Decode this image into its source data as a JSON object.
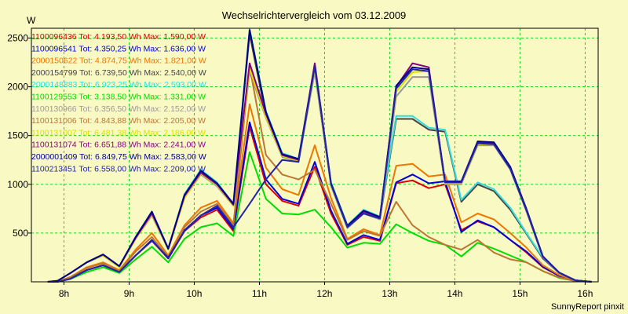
{
  "chart_data": {
    "type": "line",
    "title": "Wechselrichtervergleich vom 03.12.2009",
    "ylabel": "W",
    "xlabel": "",
    "footer": "SunnyReport pinxit",
    "ylim": [
      0,
      2600
    ],
    "xlim": [
      7.5,
      16.2
    ],
    "x_ticks": [
      8,
      9,
      10,
      11,
      12,
      13,
      14,
      15,
      16
    ],
    "x_tick_labels": [
      "8h",
      "9h",
      "10h",
      "11h",
      "12h",
      "13h",
      "14h",
      "15h",
      "16h"
    ],
    "y_ticks": [
      500,
      1000,
      1500,
      2000,
      2500
    ],
    "y_tick_labels": [
      "500",
      "1000",
      "1500",
      "2000",
      "2500"
    ],
    "grid": true,
    "legend_position": "top-left",
    "background_color": "#f9f9c4",
    "grid_color": "#22cc22",
    "x": [
      7.75,
      7.9,
      8.1,
      8.35,
      8.6,
      8.85,
      9.1,
      9.35,
      9.6,
      9.85,
      10.1,
      10.35,
      10.6,
      10.85,
      11.1,
      11.35,
      11.6,
      11.85,
      12.1,
      12.35,
      12.6,
      12.85,
      13.1,
      13.35,
      13.6,
      13.85,
      14.1,
      14.35,
      14.6,
      14.85,
      15.1,
      15.35,
      15.6,
      15.85,
      16.1
    ],
    "series": [
      {
        "name": "1100096436 Tot: 4.193,50 Wh Max: 1.590,00 W",
        "color": "#dd0000",
        "values": [
          0,
          0,
          40,
          120,
          170,
          100,
          270,
          420,
          240,
          520,
          660,
          740,
          520,
          1590,
          1000,
          830,
          780,
          1180,
          700,
          380,
          460,
          420,
          1010,
          1040,
          960,
          1000,
          530,
          620,
          560,
          430,
          300,
          150,
          60,
          10,
          0
        ]
      },
      {
        "name": "1100096541 Tot: 4.350,25 Wh Max: 1.636,00 W",
        "color": "#0000dd",
        "values": [
          0,
          0,
          40,
          120,
          170,
          100,
          270,
          430,
          240,
          530,
          680,
          760,
          540,
          1636,
          1050,
          850,
          800,
          1230,
          730,
          390,
          480,
          430,
          1020,
          1100,
          1010,
          1030,
          510,
          630,
          560,
          430,
          310,
          155,
          62,
          10,
          0
        ]
      },
      {
        "name": "2000150622 Tot: 4.874,75 Wh Max: 1.821,00 W",
        "color": "#ee7700",
        "values": [
          0,
          0,
          50,
          150,
          200,
          120,
          330,
          500,
          270,
          580,
          760,
          830,
          600,
          1821,
          1170,
          950,
          890,
          1400,
          860,
          440,
          540,
          480,
          1190,
          1210,
          1080,
          1100,
          610,
          700,
          640,
          500,
          350,
          170,
          70,
          12,
          0
        ]
      },
      {
        "name": "2000154799 Tot: 6.739,50 Wh Max: 2.540,00 W",
        "color": "#444444",
        "values": [
          0,
          10,
          90,
          200,
          270,
          160,
          450,
          700,
          340,
          880,
          1130,
          1000,
          790,
          2540,
          1700,
          1300,
          1250,
          2200,
          1000,
          560,
          720,
          650,
          1670,
          1670,
          1560,
          1540,
          820,
          1000,
          930,
          740,
          490,
          240,
          90,
          15,
          0
        ]
      },
      {
        "name": "2000148883 Tot: 6.923,25 Wh Max: 2.593,00 W",
        "color": "#33dddd",
        "values": [
          0,
          10,
          90,
          200,
          280,
          160,
          460,
          720,
          340,
          900,
          1150,
          1020,
          800,
          2593,
          1750,
          1320,
          1260,
          2230,
          1020,
          580,
          740,
          670,
          1700,
          1700,
          1580,
          1560,
          840,
          1020,
          950,
          760,
          500,
          250,
          95,
          15,
          0
        ]
      },
      {
        "name": "1100129553 Tot: 3.138,50 Wh Max: 1.331,00 W",
        "color": "#00dd00",
        "values": [
          0,
          0,
          30,
          100,
          150,
          90,
          230,
          360,
          200,
          440,
          560,
          600,
          470,
          1331,
          850,
          700,
          690,
          740,
          560,
          350,
          400,
          390,
          590,
          500,
          420,
          380,
          260,
          400,
          340,
          270,
          200,
          110,
          40,
          8,
          0
        ]
      },
      {
        "name": "1100130966 Tot: 6.356,50 Wh Max: 2.152,00 W",
        "color": "#999999",
        "values": [
          0,
          10,
          90,
          200,
          270,
          150,
          440,
          680,
          330,
          860,
          1100,
          980,
          780,
          2152,
          1680,
          1280,
          1230,
          2152,
          980,
          550,
          700,
          640,
          1900,
          2100,
          2100,
          1000,
          1000,
          1400,
          1400,
          1150,
          720,
          250,
          90,
          15,
          0
        ]
      },
      {
        "name": "1100131006 Tot: 4.843,88 Wh Max: 2.205,00 W",
        "color": "#bb7733",
        "values": [
          0,
          0,
          50,
          140,
          190,
          110,
          310,
          460,
          250,
          560,
          720,
          800,
          580,
          2205,
          1300,
          1100,
          1050,
          1150,
          800,
          430,
          520,
          470,
          820,
          580,
          460,
          380,
          330,
          430,
          300,
          230,
          200,
          110,
          45,
          8,
          0
        ]
      },
      {
        "name": "1100131007 Tot: 6.481,38 Wh Max: 2.186,00 W",
        "color": "#dddd00",
        "values": [
          0,
          10,
          90,
          200,
          270,
          150,
          440,
          690,
          330,
          860,
          1110,
          990,
          780,
          2186,
          1690,
          1290,
          1240,
          2186,
          990,
          560,
          710,
          650,
          1950,
          2150,
          2160,
          1010,
          1010,
          1410,
          1410,
          1160,
          730,
          255,
          92,
          15,
          0
        ]
      },
      {
        "name": "1100131074 Tot: 6.651,88 Wh Max: 2.241,00 W",
        "color": "#880088",
        "values": [
          0,
          10,
          90,
          200,
          280,
          160,
          450,
          700,
          340,
          880,
          1120,
          1000,
          790,
          2241,
          1720,
          1300,
          1250,
          2241,
          1000,
          570,
          720,
          660,
          2000,
          2241,
          2200,
          1020,
          1020,
          1430,
          1420,
          1170,
          740,
          260,
          95,
          15,
          0
        ]
      },
      {
        "name": "2000001409 Tot: 6.849,75 Wh Max: 2.583,00 W",
        "color": "#000088",
        "values": [
          0,
          10,
          90,
          200,
          280,
          160,
          460,
          720,
          340,
          890,
          1140,
          1010,
          800,
          2583,
          1740,
          1310,
          1260,
          2210,
          1010,
          575,
          730,
          665,
          2010,
          2200,
          2180,
          1030,
          1030,
          1440,
          1430,
          1180,
          745,
          262,
          96,
          15,
          0
        ]
      },
      {
        "name": "1100213451 Tot: 6.558,00 Wh Max: 2.209,00 W",
        "color": "#2222aa",
        "values": [
          0,
          0,
          30,
          120,
          170,
          100,
          270,
          420,
          250,
          520,
          680,
          780,
          560,
          800,
          1050,
          1250,
          1230,
          2209,
          1000,
          560,
          700,
          650,
          1980,
          2180,
          2160,
          1020,
          1020,
          1420,
          1410,
          1160,
          730,
          256,
          93,
          15,
          0
        ]
      }
    ]
  }
}
